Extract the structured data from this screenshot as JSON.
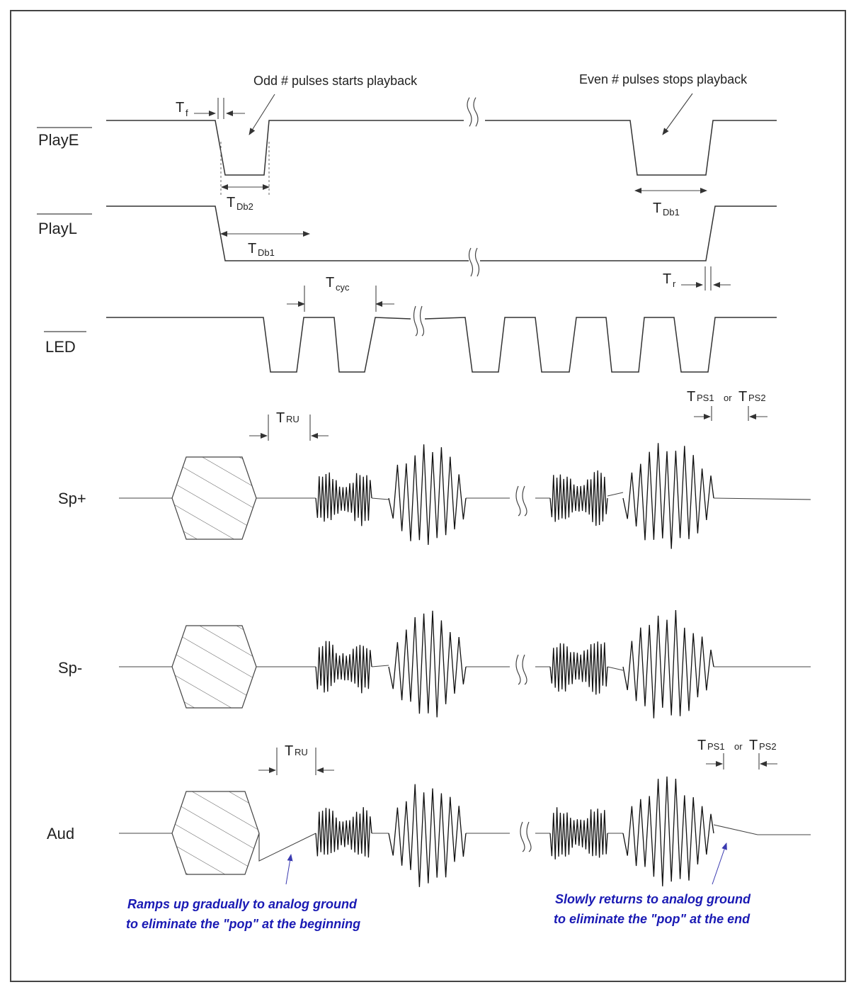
{
  "signals": {
    "playe": "PlayE",
    "playl": "PlayL",
    "led": "LED",
    "sp_plus": "Sp+",
    "sp_minus": "Sp-",
    "aud": "Aud"
  },
  "annotations": {
    "odd_pulses": "Odd # pulses starts playback",
    "even_pulses": "Even # pulses stops playback"
  },
  "timing": {
    "t": "T",
    "f": "f",
    "r": "r",
    "db2": "Db2",
    "db1": "Db1",
    "cyc": "cyc",
    "ru": "RU",
    "ps1": "PS1",
    "ps2": "PS2",
    "or": "or"
  },
  "notes": {
    "ramp_line1": "Ramps up gradually to analog ground",
    "ramp_line2": "to eliminate the \"pop\" at the beginning",
    "return_line1": "Slowly returns to analog ground",
    "return_line2": "to eliminate the \"pop\" at the end"
  },
  "colors": {
    "note_text": "#1a1ab4",
    "line": "#333333",
    "border": "#444444"
  }
}
